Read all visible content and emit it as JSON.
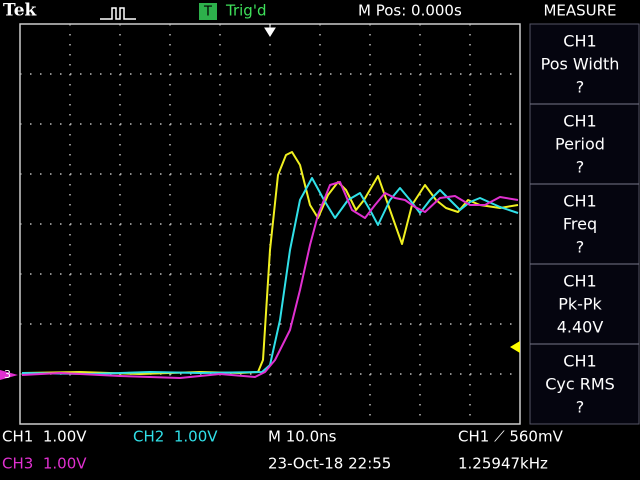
{
  "header": {
    "brand": "Tek",
    "trigger_icon": "T",
    "trigger_status": "Trig'd",
    "position": "M Pos: 0.000s",
    "menu": "MEASURE"
  },
  "measurements": [
    {
      "channel": "CH1",
      "name": "Pos Width",
      "value": "?"
    },
    {
      "channel": "CH1",
      "name": "Period",
      "value": "?"
    },
    {
      "channel": "CH1",
      "name": "Freq",
      "value": "?"
    },
    {
      "channel": "CH1",
      "name": "Pk-Pk",
      "value": "4.40V"
    },
    {
      "channel": "CH1",
      "name": "Cyc RMS",
      "value": "?"
    }
  ],
  "markers": {
    "ch3": "3"
  },
  "footer": {
    "ch1": "CH1  1.00V",
    "ch2": "CH2  1.00V",
    "ch3": "CH3  1.00V",
    "timebase": "M 10.0ns",
    "trigger": "CH1 ⟋ 560mV",
    "datetime": "23-Oct-18 22:55",
    "frequency": "1.25947kHz"
  }
}
